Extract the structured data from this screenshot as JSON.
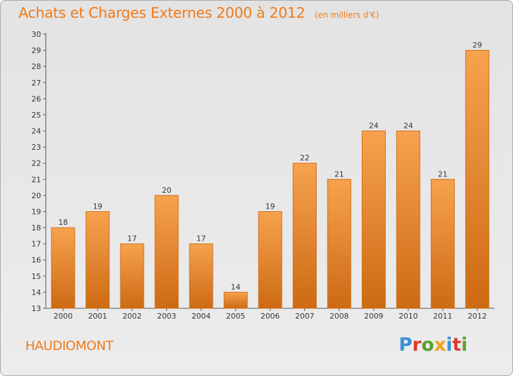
{
  "header": {
    "title": "Achats et Charges Externes 2000 à 2012",
    "unit": "(en milliers d'€)"
  },
  "footer": {
    "commune": "HAUDIOMONT",
    "brand": "Proxiti",
    "brand_colors": [
      "#3a8fd6",
      "#e03a2a",
      "#5aa02c",
      "#f2a01a",
      "#3a8fd6",
      "#e03a2a",
      "#5aa02c"
    ]
  },
  "colors": {
    "title": "#f07a1a",
    "bar_top": "#f7a24e",
    "bar_bottom": "#cd6a14",
    "bar_stroke": "#d0701a"
  },
  "chart_data": {
    "type": "bar",
    "categories": [
      "2000",
      "2001",
      "2002",
      "2003",
      "2004",
      "2005",
      "2006",
      "2007",
      "2008",
      "2009",
      "2010",
      "2011",
      "2012"
    ],
    "values": [
      18,
      19,
      17,
      20,
      17,
      14,
      19,
      22,
      21,
      24,
      24,
      21,
      29
    ],
    "ylim": [
      13,
      30
    ],
    "yticks": [
      13,
      14,
      15,
      16,
      17,
      18,
      19,
      20,
      21,
      22,
      23,
      24,
      25,
      26,
      27,
      28,
      29,
      30
    ],
    "xlabel": "",
    "ylabel": "",
    "grid": false,
    "data_labels": true
  }
}
